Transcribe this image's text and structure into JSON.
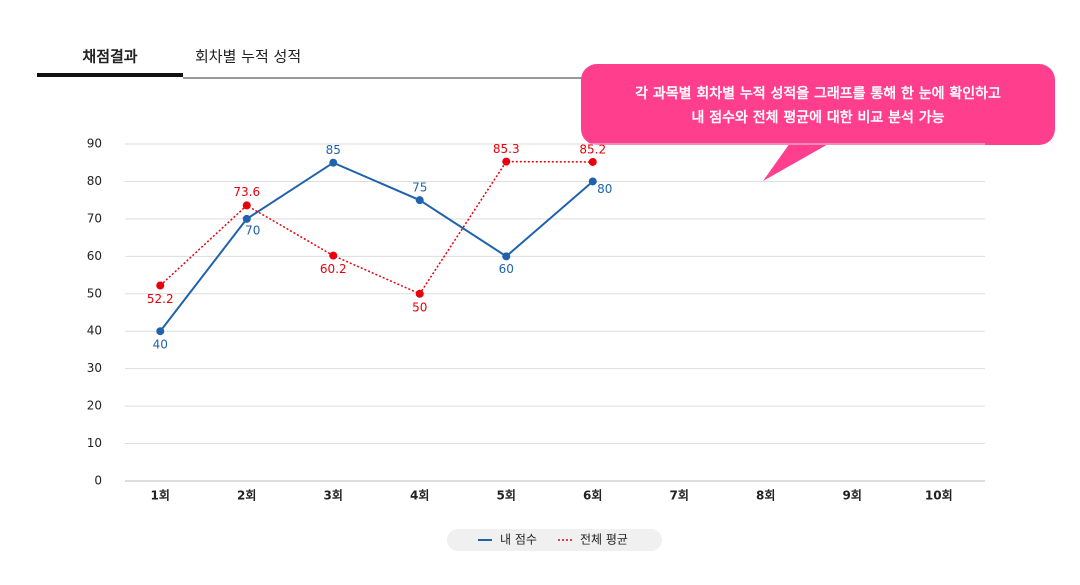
{
  "tab": "채점결과",
  "callout": [
    "각 과목별 회차별 누적 성적을 그래프를 통해 한 눈에 확인하고",
    "내 점수와 전체 평균에 대한 비교 분석 가능"
  ],
  "chart_data": {
    "type": "line",
    "title": "회차별 누적 성적",
    "categories": [
      "1회",
      "2회",
      "3회",
      "4회",
      "5회",
      "6회",
      "7회",
      "8회",
      "9회",
      "10회"
    ],
    "series": [
      {
        "name": "내 점수",
        "color": "#1f63ad",
        "dash": false,
        "values": [
          40,
          70,
          85,
          75,
          60,
          80,
          null,
          null,
          null,
          null
        ]
      },
      {
        "name": "전체 평균",
        "color": "#e8000b",
        "dash": true,
        "values": [
          52.2,
          73.6,
          60.2,
          50,
          85.3,
          85.2,
          null,
          null,
          null,
          null
        ]
      }
    ],
    "ylim": [
      0,
      90
    ],
    "yticks": [
      0,
      10,
      20,
      30,
      40,
      50,
      60,
      70,
      80,
      90
    ],
    "grid": true,
    "legend": "bottom"
  }
}
